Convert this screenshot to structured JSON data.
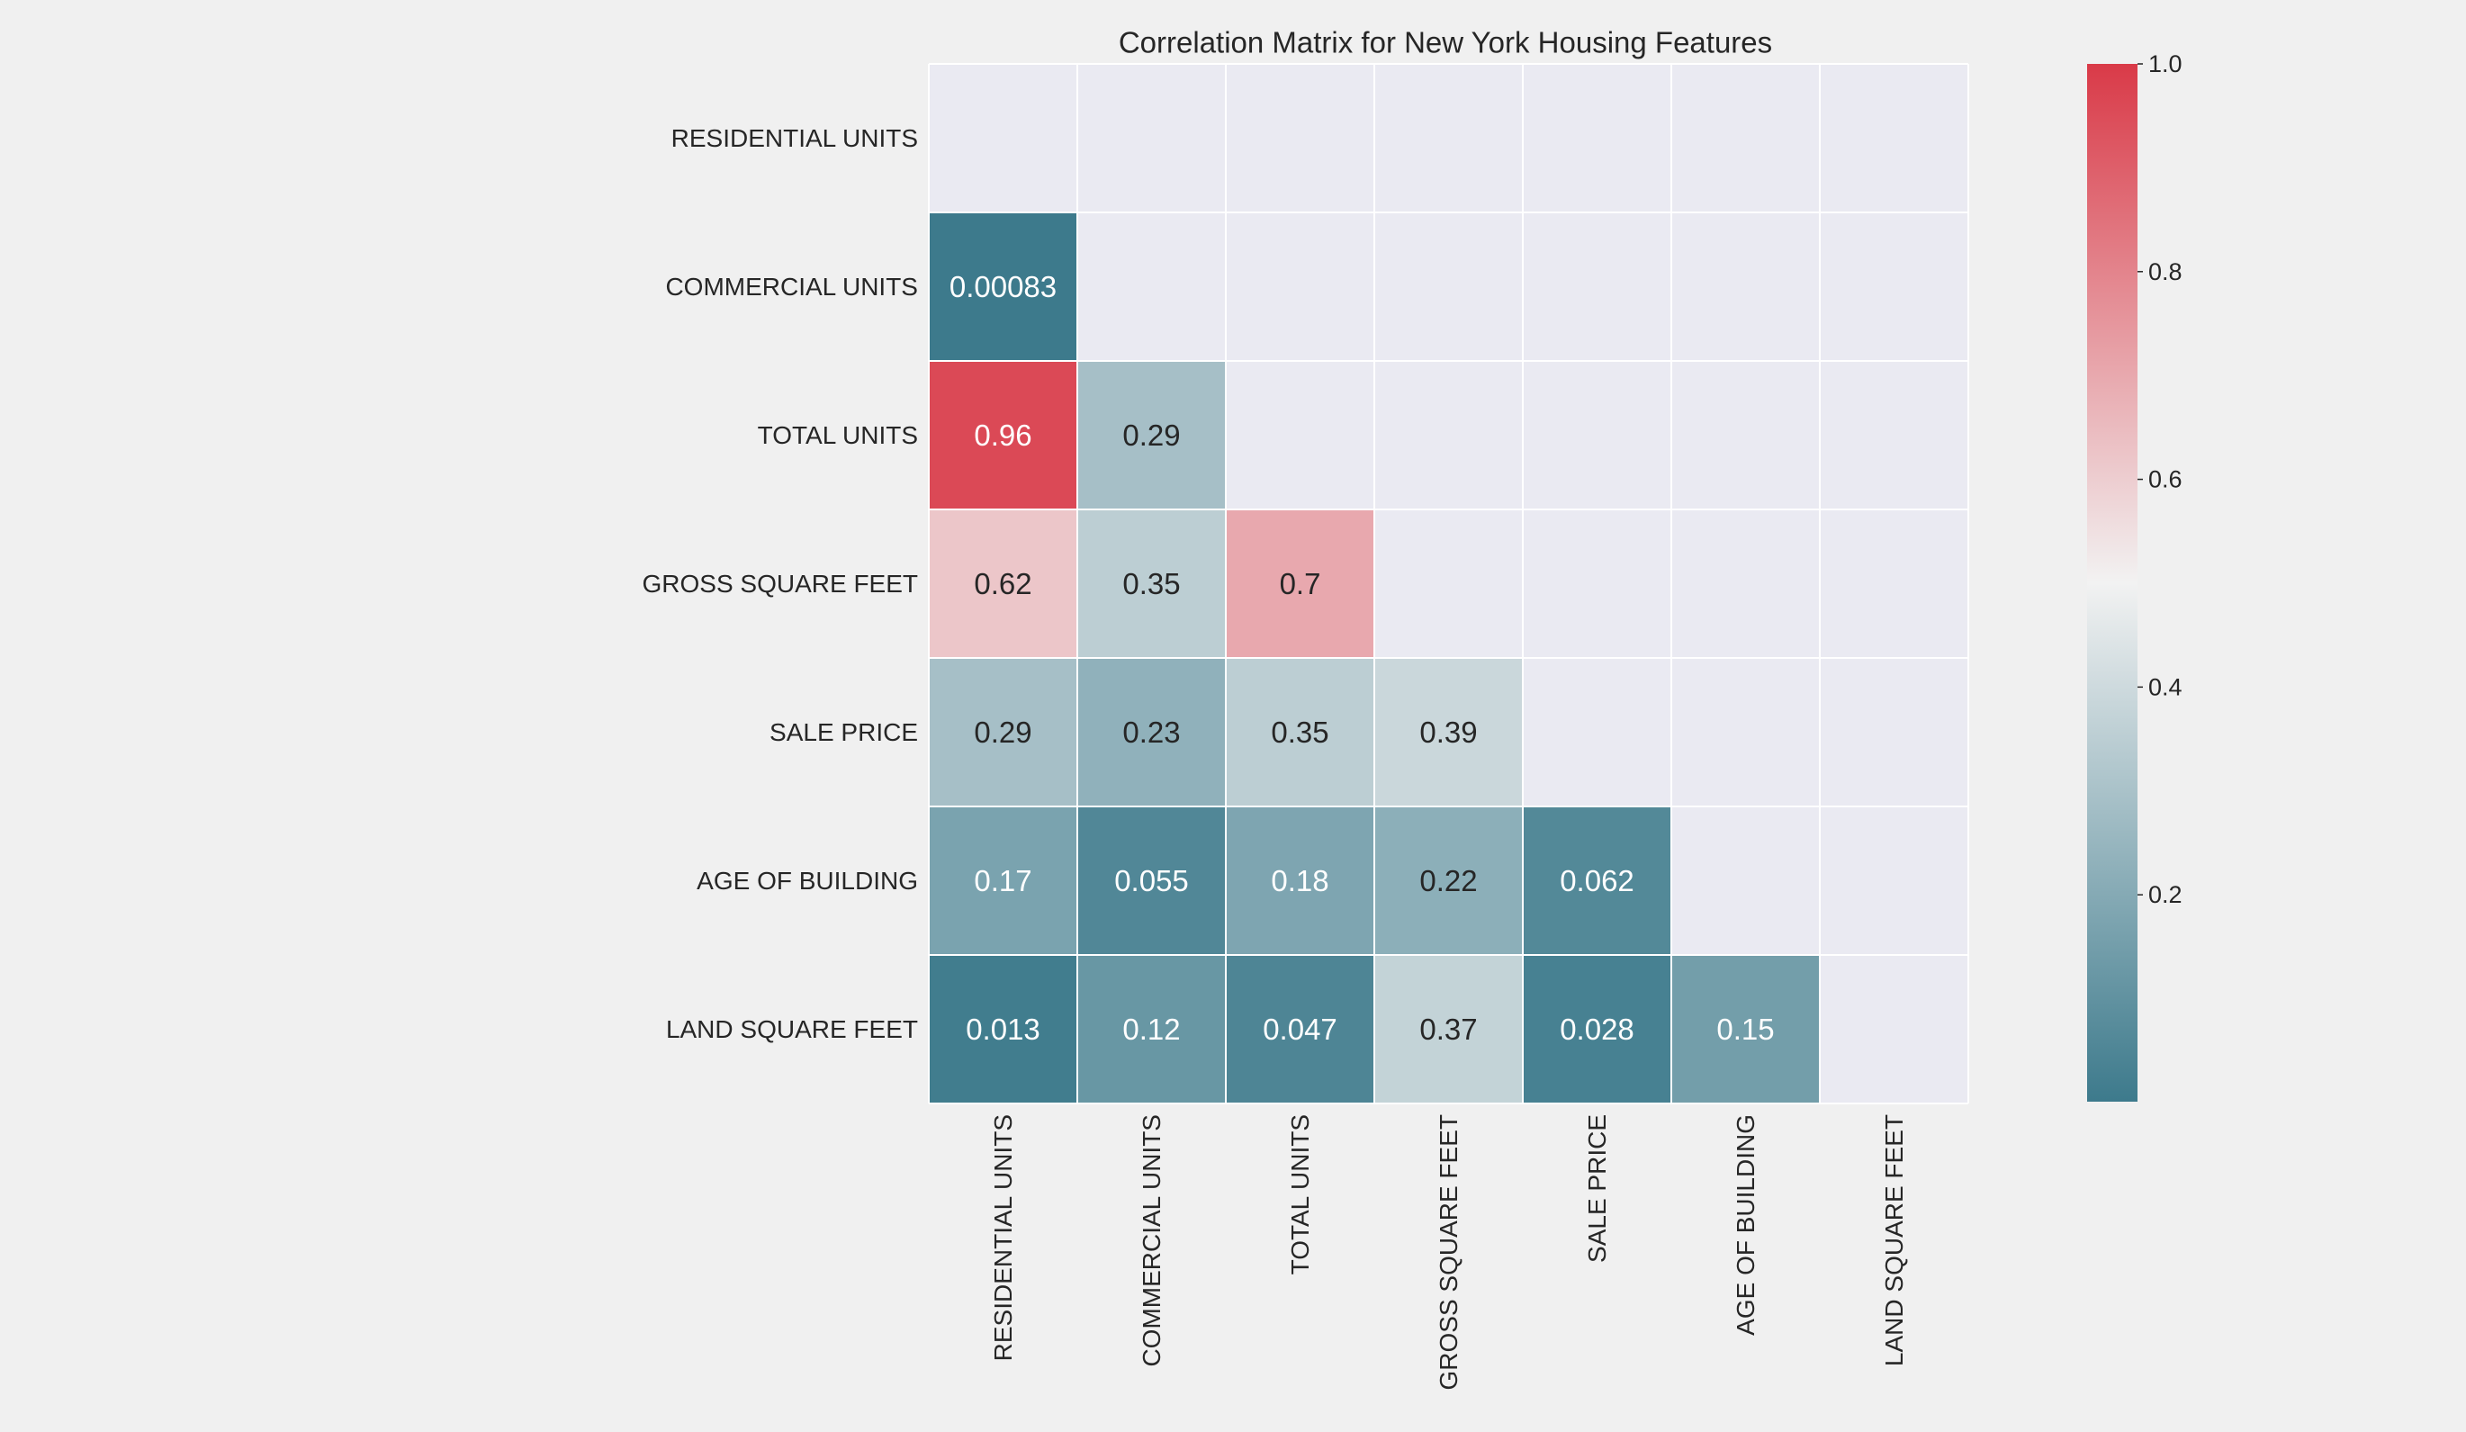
{
  "chart_data": {
    "type": "heatmap",
    "title": "Correlation Matrix for New York Housing Features",
    "row_labels": [
      "RESIDENTIAL UNITS",
      "COMMERCIAL UNITS",
      "TOTAL UNITS",
      "GROSS SQUARE FEET",
      "SALE PRICE",
      "AGE OF BUILDING",
      "LAND SQUARE FEET"
    ],
    "col_labels": [
      "RESIDENTIAL UNITS",
      "COMMERCIAL UNITS",
      "TOTAL UNITS",
      "GROSS SQUARE FEET",
      "SALE PRICE",
      "AGE OF BUILDING",
      "LAND SQUARE FEET"
    ],
    "mask": "upper-triangle-including-diagonal",
    "cells": [
      {
        "row": 1,
        "col": 0,
        "value": 0.00083,
        "label": "0.00083"
      },
      {
        "row": 2,
        "col": 0,
        "value": 0.96,
        "label": "0.96"
      },
      {
        "row": 2,
        "col": 1,
        "value": 0.29,
        "label": "0.29"
      },
      {
        "row": 3,
        "col": 0,
        "value": 0.62,
        "label": "0.62"
      },
      {
        "row": 3,
        "col": 1,
        "value": 0.35,
        "label": "0.35"
      },
      {
        "row": 3,
        "col": 2,
        "value": 0.7,
        "label": "0.7"
      },
      {
        "row": 4,
        "col": 0,
        "value": 0.29,
        "label": "0.29"
      },
      {
        "row": 4,
        "col": 1,
        "value": 0.23,
        "label": "0.23"
      },
      {
        "row": 4,
        "col": 2,
        "value": 0.35,
        "label": "0.35"
      },
      {
        "row": 4,
        "col": 3,
        "value": 0.39,
        "label": "0.39"
      },
      {
        "row": 5,
        "col": 0,
        "value": 0.17,
        "label": "0.17"
      },
      {
        "row": 5,
        "col": 1,
        "value": 0.055,
        "label": "0.055"
      },
      {
        "row": 5,
        "col": 2,
        "value": 0.18,
        "label": "0.18"
      },
      {
        "row": 5,
        "col": 3,
        "value": 0.22,
        "label": "0.22"
      },
      {
        "row": 5,
        "col": 4,
        "value": 0.062,
        "label": "0.062"
      },
      {
        "row": 6,
        "col": 0,
        "value": 0.013,
        "label": "0.013"
      },
      {
        "row": 6,
        "col": 1,
        "value": 0.12,
        "label": "0.12"
      },
      {
        "row": 6,
        "col": 2,
        "value": 0.047,
        "label": "0.047"
      },
      {
        "row": 6,
        "col": 3,
        "value": 0.37,
        "label": "0.37"
      },
      {
        "row": 6,
        "col": 4,
        "value": 0.028,
        "label": "0.028"
      },
      {
        "row": 6,
        "col": 5,
        "value": 0.15,
        "label": "0.15"
      }
    ],
    "colorbar": {
      "vmin": 0.0008,
      "vmax": 1.0,
      "ticks": [
        0.2,
        0.4,
        0.6,
        0.8,
        1.0
      ],
      "tick_labels": [
        "0.2",
        "0.4",
        "0.6",
        "0.8",
        "1.0"
      ]
    },
    "colors": {
      "low": "#3d7a8c",
      "mid": "#f2f2f2",
      "high": "#d93a48",
      "masked": "#eaeaf2",
      "background": "#f0f0f0",
      "grid": "#ffffff",
      "text_dark": "#262626",
      "text_light": "#ffffff"
    },
    "grid": true
  }
}
